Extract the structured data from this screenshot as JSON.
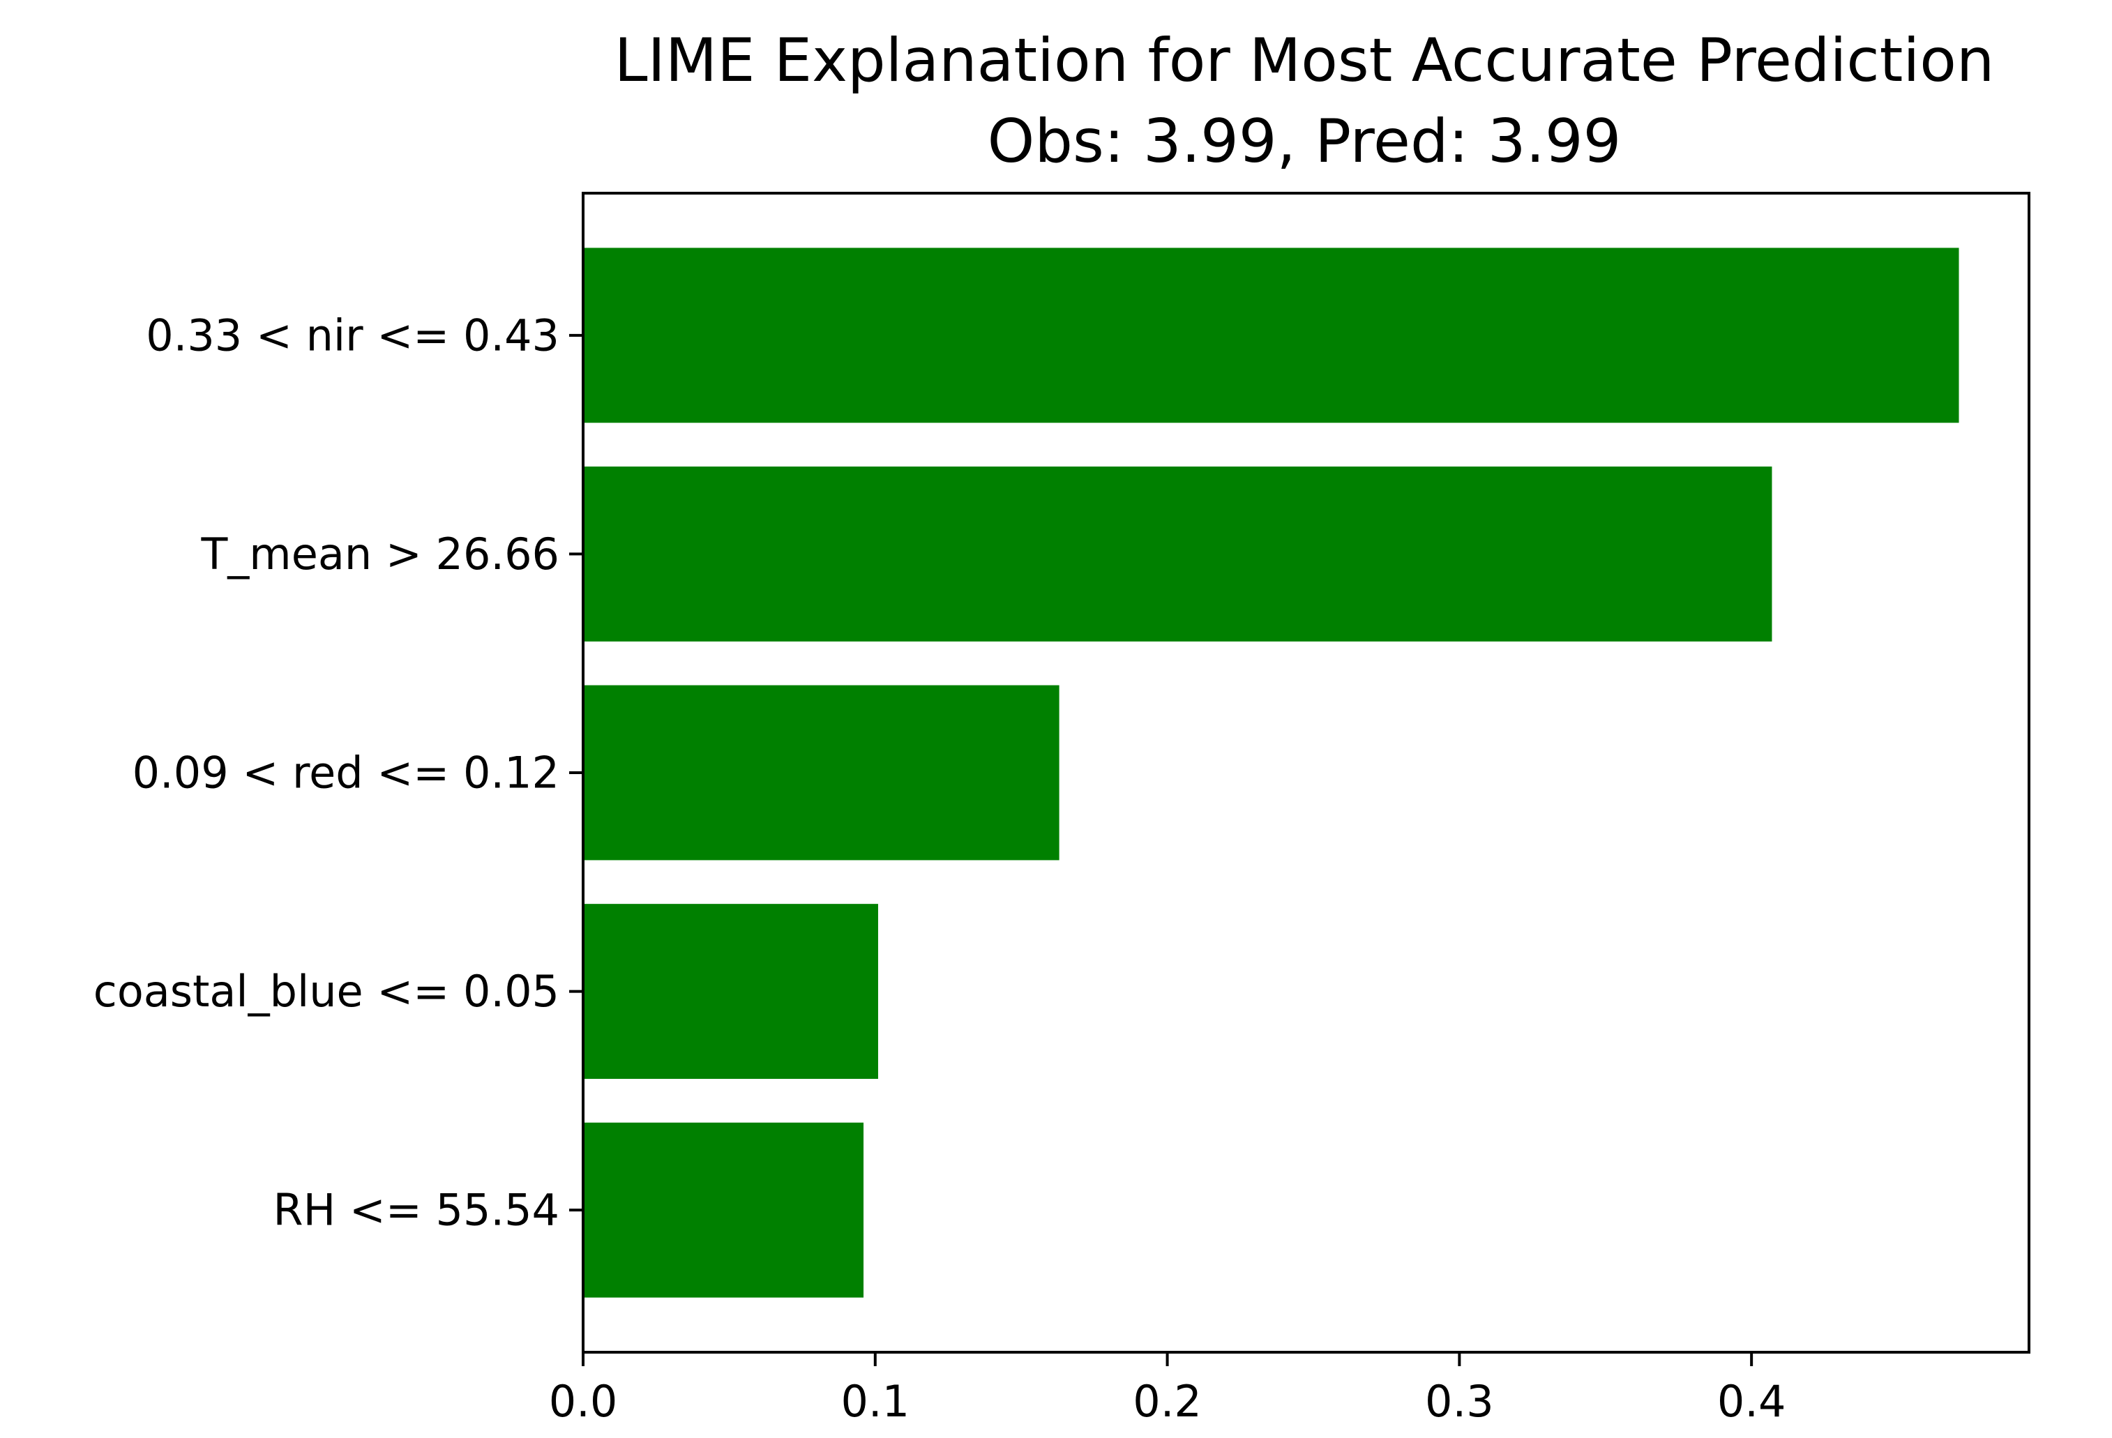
{
  "chart_data": {
    "type": "bar",
    "orientation": "horizontal",
    "title": "LIME Explanation for Most Accurate Prediction",
    "subtitle": "Obs: 3.99, Pred: 3.99",
    "xlabel": "",
    "ylabel": "",
    "categories": [
      "0.33 < nir <= 0.43",
      "T_mean > 26.66",
      "0.09 < red <= 0.12",
      "coastal_blue <= 0.05",
      "RH <= 55.54"
    ],
    "values": [
      0.471,
      0.407,
      0.163,
      0.101,
      0.096
    ],
    "xlim": [
      0,
      0.495
    ],
    "xticks": [
      0.0,
      0.1,
      0.2,
      0.3,
      0.4
    ],
    "xtick_labels": [
      "0.0",
      "0.1",
      "0.2",
      "0.3",
      "0.4"
    ],
    "grid": false,
    "legend": "none",
    "bar_color": "#008000"
  }
}
